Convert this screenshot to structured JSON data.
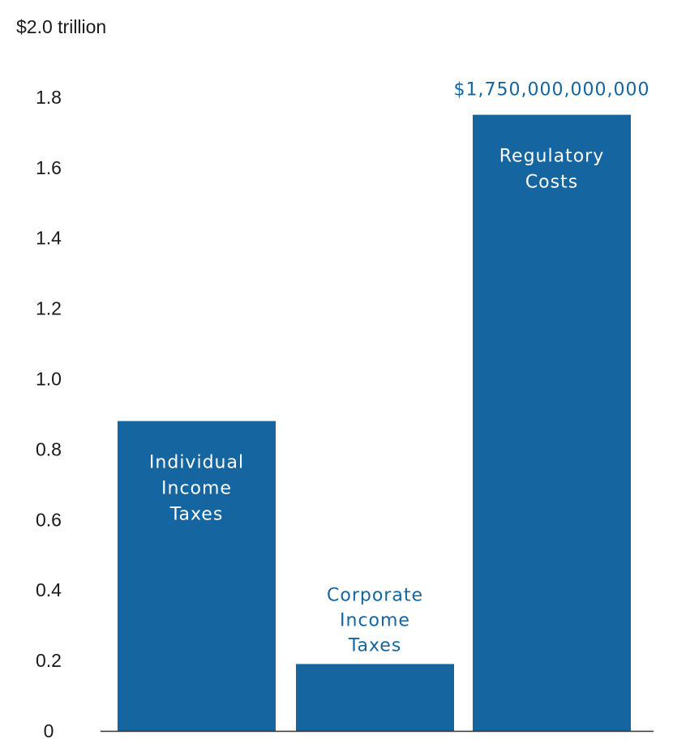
{
  "chart_data": {
    "type": "bar",
    "title": "",
    "xlabel": "",
    "ylabel": "",
    "ylim": [
      0,
      2.0
    ],
    "y_ticks": [
      {
        "value": 0,
        "label": "0"
      },
      {
        "value": 0.2,
        "label": "0.2"
      },
      {
        "value": 0.4,
        "label": "0.4"
      },
      {
        "value": 0.6,
        "label": "0.6"
      },
      {
        "value": 0.8,
        "label": "0.8"
      },
      {
        "value": 1.0,
        "label": "1.0"
      },
      {
        "value": 1.2,
        "label": "1.2"
      },
      {
        "value": 1.4,
        "label": "1.4"
      },
      {
        "value": 1.6,
        "label": "1.6"
      },
      {
        "value": 1.8,
        "label": "1.8"
      },
      {
        "value": 2.0,
        "label": "$2.0 trillion"
      }
    ],
    "categories": [
      [
        "Individual",
        "Income",
        "Taxes"
      ],
      [
        "Corporate",
        "Income",
        "Taxes"
      ],
      [
        "Regulatory",
        "Costs"
      ]
    ],
    "values": [
      0.88,
      0.19,
      1.75
    ],
    "data_labels": [
      "",
      "",
      "$1,750,000,000,000"
    ],
    "grid": false,
    "colors": {
      "bar": "#1565a0",
      "text": "#1a1a1a",
      "label_outside": "#1565a0",
      "axis": "#333333"
    }
  }
}
